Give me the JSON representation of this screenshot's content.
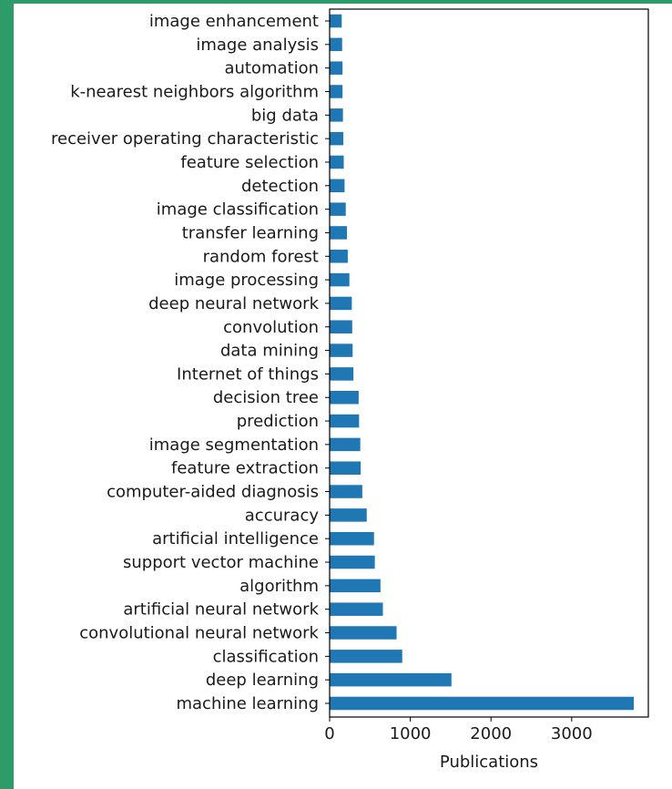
{
  "colors": {
    "bar": "#1f77b4",
    "frame_accent": "#2e9b6a",
    "axis": "#000000",
    "text": "#1a1a1a"
  },
  "chart_data": {
    "type": "bar",
    "orientation": "horizontal",
    "title": "",
    "xlabel": "Publications",
    "ylabel": "",
    "xlim": [
      0,
      3950
    ],
    "xticks": [
      0,
      1000,
      2000,
      3000
    ],
    "grid": false,
    "legend": "none",
    "categories": [
      "image enhancement",
      "image analysis",
      "automation",
      "k-nearest neighbors algorithm",
      "big data",
      "receiver operating characteristic",
      "feature selection",
      "detection",
      "image classification",
      "transfer learning",
      "random forest",
      "image processing",
      "deep neural network",
      "convolution",
      "data mining",
      "Internet of things",
      "decision tree",
      "prediction",
      "image segmentation",
      "feature extraction",
      "computer-aided diagnosis",
      "accuracy",
      "artificial intelligence",
      "support vector machine",
      "algorithm",
      "artificial neural network",
      "convolutional neural network",
      "classification",
      "deep learning",
      "machine learning"
    ],
    "values": [
      150,
      155,
      160,
      160,
      165,
      170,
      175,
      185,
      200,
      215,
      225,
      245,
      275,
      280,
      285,
      295,
      360,
      365,
      380,
      385,
      405,
      460,
      550,
      560,
      630,
      660,
      830,
      900,
      1510,
      3770
    ]
  }
}
